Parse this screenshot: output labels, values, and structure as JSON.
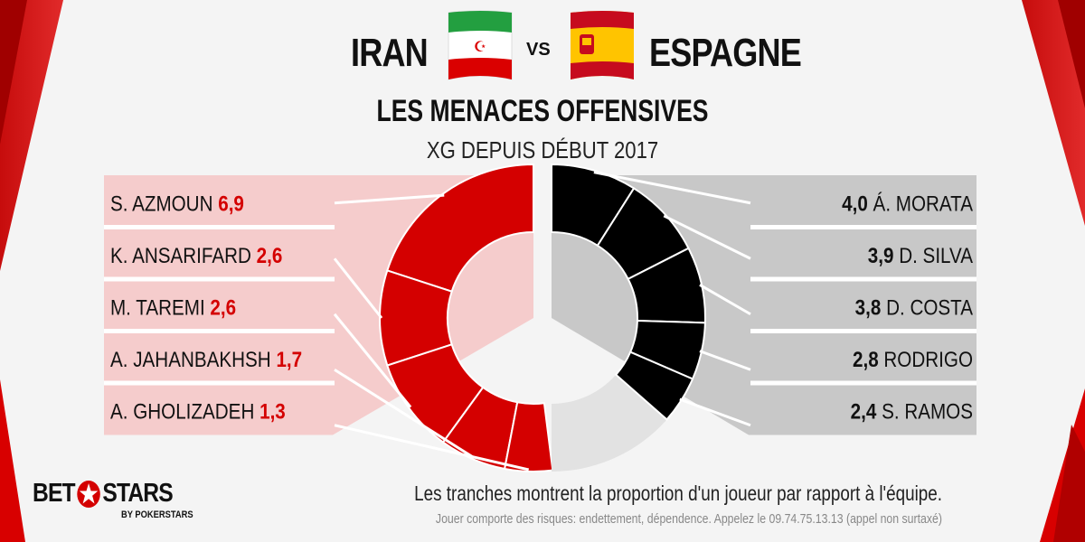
{
  "header": {
    "team_left": "IRAN",
    "team_right": "ESPAGNE",
    "vs": "VS",
    "title": "LES MENACES OFFENSIVES",
    "subtitle": "XG DEPUIS DÉBUT 2017"
  },
  "colors": {
    "iran_accent": "#d40000",
    "iran_panel": "#f5cccc",
    "spain_accent": "#000000",
    "spain_panel": "#c8c8c8",
    "remainder": "#e2e2e2"
  },
  "chart_data": [
    {
      "type": "pie",
      "name": "IRAN",
      "series": [
        {
          "label": "S. AZMOUN",
          "value": "6,9",
          "numeric": 6.9
        },
        {
          "label": "K. ANSARIFARD",
          "value": "2,6",
          "numeric": 2.6
        },
        {
          "label": "M. TAREMI",
          "value": "2,6",
          "numeric": 2.6
        },
        {
          "label": "A. JAHANBAKHSH",
          "value": "1,7",
          "numeric": 1.7
        },
        {
          "label": "A. GHOLIZADEH",
          "value": "1,3",
          "numeric": 1.3
        }
      ],
      "share_of_team": [
        0.2,
        0.1,
        0.1,
        0.07,
        0.05
      ]
    },
    {
      "type": "pie",
      "name": "ESPAGNE",
      "series": [
        {
          "label": "Á. MORATA",
          "value": "4,0",
          "numeric": 4.0
        },
        {
          "label": "D. SILVA",
          "value": "3,9",
          "numeric": 3.9
        },
        {
          "label": "D. COSTA",
          "value": "3,8",
          "numeric": 3.8
        },
        {
          "label": "RODRIGO",
          "value": "2,8",
          "numeric": 2.8
        },
        {
          "label": "S. RAMOS",
          "value": "2,4",
          "numeric": 2.4
        }
      ],
      "share_of_team": [
        0.09,
        0.085,
        0.08,
        0.06,
        0.05
      ]
    }
  ],
  "footer": {
    "note": "Les tranches montrent la proportion d'un joueur par rapport à l'équipe.",
    "disclaimer": "Jouer comporte des risques: endettement, dépendence. Appelez le 09.74.75.13.13 (appel non surtaxé)",
    "logo_main_left": "BET",
    "logo_main_right": "STARS",
    "logo_sub": "BY POKERSTARS"
  }
}
